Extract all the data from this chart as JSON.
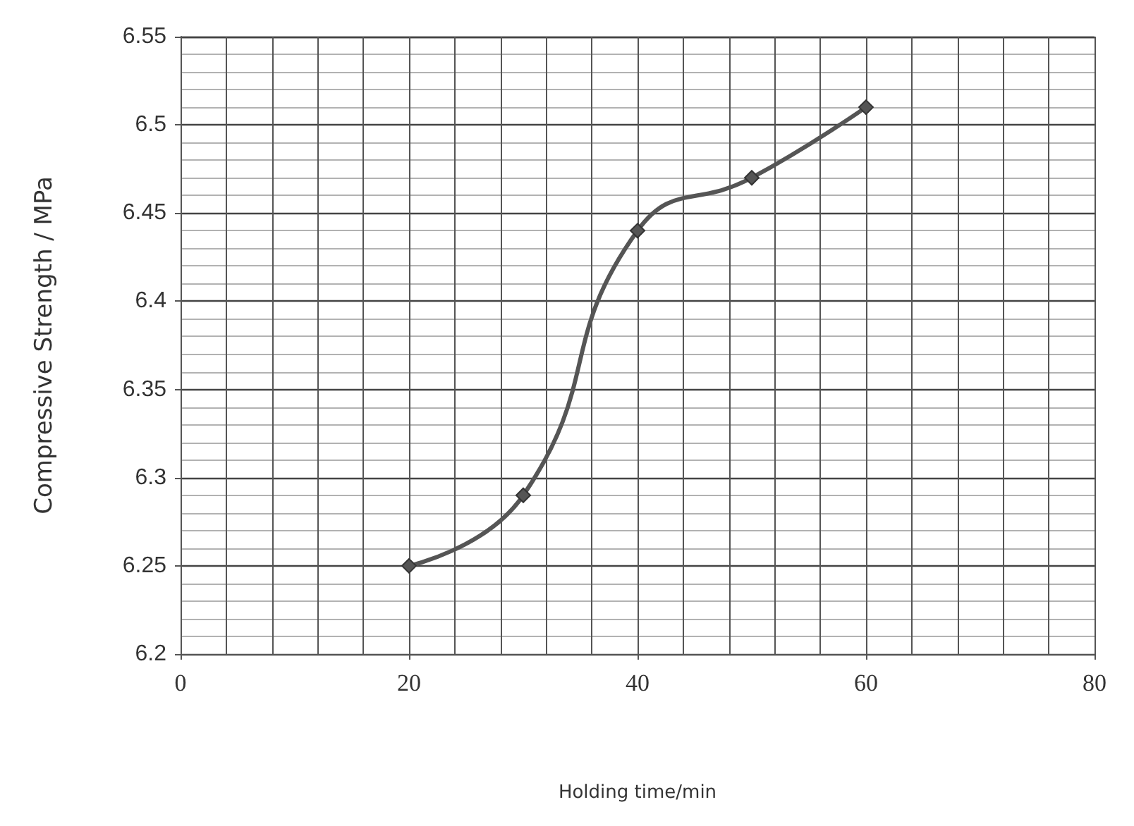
{
  "chart_data": {
    "type": "line",
    "xlabel": "Holding time/min",
    "ylabel": "Compressive Strength / MPa",
    "x": [
      20,
      30,
      40,
      50,
      60
    ],
    "series": [
      {
        "color": "#555555",
        "values": [
          6.25,
          6.29,
          6.44,
          6.47,
          6.51
        ]
      }
    ],
    "xlim": [
      0,
      80
    ],
    "xticks": [
      0,
      20,
      40,
      60,
      80
    ],
    "ylim": [
      6.2,
      6.55
    ],
    "yticks": [
      6.2,
      6.25,
      6.3,
      6.35,
      6.4,
      6.45,
      6.5,
      6.55
    ],
    "grid": true,
    "marker": "diamond",
    "line_style": "solid"
  }
}
